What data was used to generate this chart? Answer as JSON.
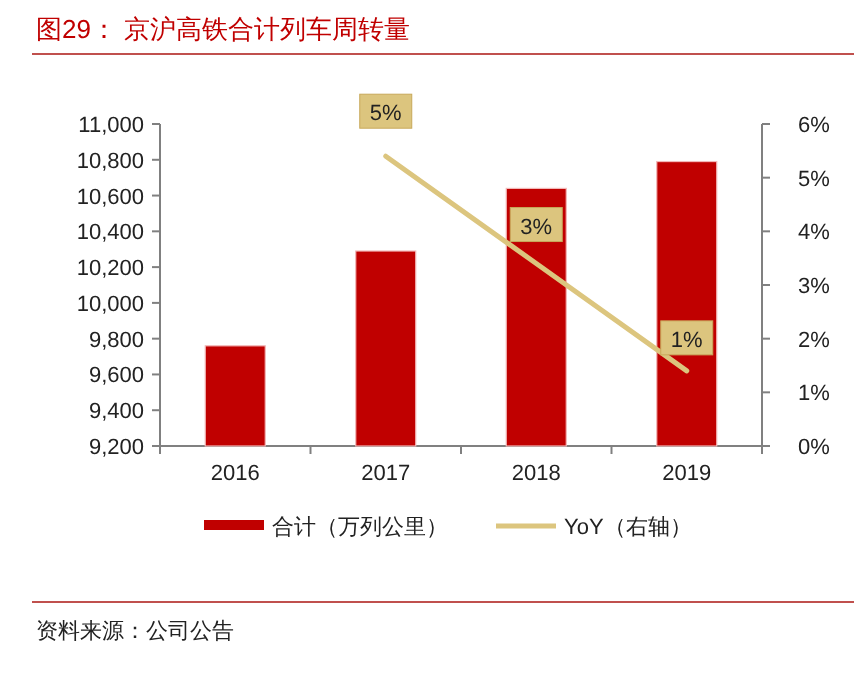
{
  "chart_data": {
    "type": "bar",
    "title": "图29：  京沪高铁合计列车周转量",
    "categories": [
      "2016",
      "2017",
      "2018",
      "2019"
    ],
    "series": [
      {
        "name": "合计（万列公里）",
        "color": "#c00000",
        "values": [
          9760,
          10290,
          10640,
          10790
        ]
      },
      {
        "name": "YoY（右轴）",
        "type": "line",
        "axis": "y2",
        "color": "#dcc57e",
        "values": [
          null,
          5.4,
          3.4,
          1.4
        ],
        "value_labels": [
          null,
          "5%",
          "3%",
          "1%"
        ]
      }
    ],
    "ylim": [
      9200,
      11000
    ],
    "yticks": [
      {
        "value": 9200,
        "label": "9,200"
      },
      {
        "value": 9400,
        "label": "9,400"
      },
      {
        "value": 9600,
        "label": "9,600"
      },
      {
        "value": 9800,
        "label": "9,800"
      },
      {
        "value": 10000,
        "label": "10,000"
      },
      {
        "value": 10200,
        "label": "10,200"
      },
      {
        "value": 10400,
        "label": "10,400"
      },
      {
        "value": 10600,
        "label": "10,600"
      },
      {
        "value": 10800,
        "label": "10,800"
      },
      {
        "value": 11000,
        "label": "11,000"
      }
    ],
    "y2lim": [
      0,
      6
    ],
    "y2ticks": [
      {
        "value": 0,
        "label": "0%"
      },
      {
        "value": 1,
        "label": "1%"
      },
      {
        "value": 2,
        "label": "2%"
      },
      {
        "value": 3,
        "label": "3%"
      },
      {
        "value": 4,
        "label": "4%"
      },
      {
        "value": 5,
        "label": "5%"
      },
      {
        "value": 6,
        "label": "6%"
      }
    ],
    "legend": "bottom",
    "grid": false,
    "annotations": [
      "资料来源：公司公告"
    ]
  }
}
